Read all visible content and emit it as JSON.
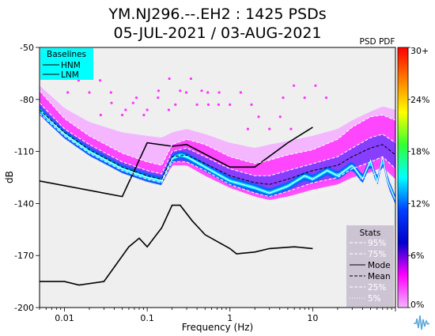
{
  "chart_data": {
    "type": "heatmap",
    "title_line1": "YM.NJ296.--.EH2 : 1425 PSDs",
    "title_line2": "05-JUL-2021 / 03-AUG-2021",
    "xlabel": "Frequency (Hz)",
    "ylabel": "dB",
    "x_scale": "log",
    "xlim": [
      0.005,
      100
    ],
    "ylim": [
      -200,
      -50
    ],
    "x_ticks": [
      {
        "value": 0.01,
        "label": "0.01"
      },
      {
        "value": 0.1,
        "label": "0.1"
      },
      {
        "value": 1,
        "label": "1"
      },
      {
        "value": 10,
        "label": "10"
      }
    ],
    "y_ticks": [
      {
        "value": -50,
        "label": "-50"
      },
      {
        "value": -80,
        "label": "-80"
      },
      {
        "value": -110,
        "label": "-110"
      },
      {
        "value": -140,
        "label": "-140"
      },
      {
        "value": -170,
        "label": "-170"
      },
      {
        "value": -200,
        "label": "-200"
      }
    ],
    "grid": false,
    "colorbar": {
      "title": "PSD PDF",
      "ticks": [
        "30+",
        "24%",
        "18%",
        "12%",
        "6%",
        "0%"
      ],
      "colors": [
        "#ff0000",
        "#ff7f00",
        "#ffff00",
        "#33ff33",
        "#00ffff",
        "#0040ff",
        "#0000cc",
        "#ff00ff",
        "#f5b3ff"
      ]
    },
    "baselines_legend": {
      "title": "Baselines",
      "entries": [
        "HNM",
        "LNM"
      ],
      "background": "#00ffff"
    },
    "stats_legend": {
      "title": "Stats",
      "entries": [
        "95%",
        "75%",
        "Mode",
        "Mean",
        "25%",
        "5%"
      ],
      "background": "#c8bfcf"
    },
    "series": [
      {
        "name": "HNM",
        "color": "#000000",
        "x": [
          0.005,
          0.05,
          0.1,
          0.2,
          0.3,
          1,
          2,
          5,
          10
        ],
        "y": [
          -127,
          -136,
          -105,
          -107,
          -106,
          -119,
          -119,
          -105,
          -96
        ]
      },
      {
        "name": "LNM",
        "color": "#000000",
        "x": [
          0.005,
          0.01,
          0.015,
          0.03,
          0.06,
          0.08,
          0.1,
          0.15,
          0.2,
          0.25,
          0.35,
          0.5,
          1,
          1.2,
          2,
          3,
          6,
          10
        ],
        "y": [
          -185,
          -185,
          -187,
          -185,
          -165,
          -160,
          -165,
          -154,
          -141,
          -141,
          -150,
          -158,
          -166,
          -169,
          -168,
          -166,
          -165,
          -166
        ]
      },
      {
        "name": "Mode",
        "color": "#ffffff",
        "x": [
          0.005,
          0.006,
          0.01,
          0.02,
          0.05,
          0.1,
          0.15,
          0.2,
          0.25,
          0.3,
          0.5,
          1,
          2,
          3,
          5,
          8,
          10,
          15,
          20,
          30,
          40,
          50,
          60,
          70,
          80,
          100
        ],
        "y": [
          -86,
          -90,
          -100,
          -110,
          -120,
          -125,
          -127,
          -114,
          -112,
          -113,
          -119,
          -127,
          -131,
          -134,
          -130,
          -124,
          -126,
          -121,
          -124,
          -118,
          -126,
          -115,
          -128,
          -113,
          -127,
          -138
        ]
      },
      {
        "name": "95%",
        "color": "#ffffff",
        "x": [
          0.005,
          0.01,
          0.02,
          0.05,
          0.1,
          0.15,
          0.2,
          0.3,
          0.5,
          1,
          2,
          3,
          5,
          10,
          20,
          30,
          50,
          70,
          100
        ],
        "y": [
          -75,
          -91,
          -101,
          -111,
          -116,
          -118,
          -106,
          -103,
          -106,
          -113,
          -117,
          -115,
          -112,
          -109,
          -103,
          -96,
          -90,
          -89,
          -92
        ]
      },
      {
        "name": "75%",
        "color": "#ffffff",
        "x": [
          0.005,
          0.01,
          0.02,
          0.05,
          0.1,
          0.15,
          0.2,
          0.3,
          0.5,
          1,
          2,
          3,
          5,
          10,
          20,
          30,
          50,
          70,
          100
        ],
        "y": [
          -82,
          -97,
          -106,
          -116,
          -121,
          -123,
          -110,
          -108,
          -113,
          -120,
          -124,
          -124,
          -121,
          -117,
          -113,
          -108,
          -102,
          -100,
          -105
        ]
      },
      {
        "name": "Mean",
        "color": "#000000",
        "x": [
          0.005,
          0.01,
          0.02,
          0.05,
          0.1,
          0.15,
          0.2,
          0.3,
          0.5,
          1,
          2,
          3,
          5,
          10,
          20,
          30,
          50,
          70,
          100
        ],
        "y": [
          -86,
          -99,
          -109,
          -119,
          -124,
          -126,
          -113,
          -112,
          -117,
          -124,
          -128,
          -129,
          -126,
          -121,
          -118,
          -113,
          -108,
          -106,
          -112
        ]
      },
      {
        "name": "25%",
        "color": "#ffffff",
        "x": [
          0.005,
          0.01,
          0.02,
          0.05,
          0.1,
          0.15,
          0.2,
          0.3,
          0.5,
          1,
          2,
          3,
          5,
          10,
          20,
          30,
          50,
          70,
          100
        ],
        "y": [
          -88,
          -101,
          -111,
          -121,
          -126,
          -128,
          -116,
          -116,
          -121,
          -129,
          -134,
          -136,
          -133,
          -128,
          -125,
          -120,
          -116,
          -113,
          -120
        ]
      },
      {
        "name": "5%",
        "color": "#ffffff",
        "x": [
          0.005,
          0.01,
          0.02,
          0.05,
          0.1,
          0.15,
          0.2,
          0.3,
          0.5,
          1,
          2,
          3,
          5,
          10,
          20,
          30,
          50,
          70,
          100
        ],
        "y": [
          -91,
          -104,
          -114,
          -124,
          -129,
          -131,
          -120,
          -120,
          -126,
          -133,
          -138,
          -140,
          -138,
          -134,
          -131,
          -127,
          -124,
          -121,
          -128
        ]
      }
    ],
    "upper_band_dB": {
      "x": [
        0.005,
        0.01,
        0.02,
        0.05,
        0.1,
        0.15,
        0.2,
        0.3,
        0.5,
        1,
        2,
        3,
        5,
        10,
        20,
        30,
        50,
        70,
        100
      ],
      "y": [
        -72,
        -85,
        -93,
        -99,
        -101,
        -102,
        -99,
        -97,
        -100,
        -105,
        -108,
        -106,
        -104,
        -101,
        -97,
        -92,
        -87,
        -84,
        -86
      ]
    },
    "upper_scatter_dB": {
      "x": [
        0.02,
        0.05,
        0.1,
        0.25,
        0.4,
        1,
        3,
        8
      ],
      "y": [
        -73,
        -86,
        -83,
        -72,
        -80,
        -80,
        -94,
        -76
      ]
    }
  }
}
